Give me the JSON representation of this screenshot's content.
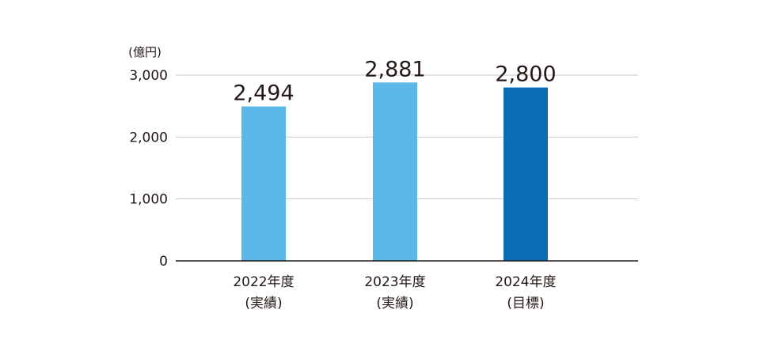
{
  "chart_data": {
    "type": "bar",
    "unit_label": "(億円)",
    "categories": [
      {
        "line1": "2022年度",
        "line2": "(実績)"
      },
      {
        "line1": "2023年度",
        "line2": "(実績)"
      },
      {
        "line1": "2024年度",
        "line2": "(目標)"
      }
    ],
    "values": [
      2494,
      2881,
      2800
    ],
    "value_labels": [
      "2,494",
      "2,881",
      "2,800"
    ],
    "bar_colors": [
      "#5bb7e8",
      "#5bb7e8",
      "#0b6bb5"
    ],
    "ylim": [
      0,
      3000
    ],
    "yticks": [
      0,
      1000,
      2000,
      3000
    ],
    "ytick_labels": [
      "0",
      "1,000",
      "2,000",
      "3,000"
    ],
    "grid": true,
    "legend": "none"
  }
}
